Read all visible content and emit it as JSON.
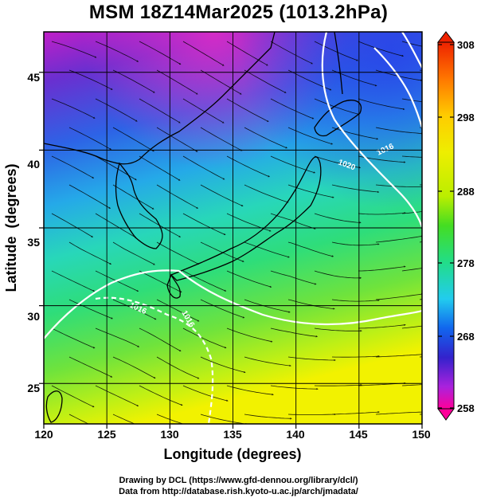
{
  "title": "MSM 18Z14Mar2025 (1013.2hPa)",
  "map": {
    "xaxis": {
      "label": "Longitude (degrees)",
      "range": [
        120,
        150
      ],
      "ticks": [
        "120",
        "125",
        "130",
        "135",
        "140",
        "145",
        "150"
      ]
    },
    "yaxis": {
      "label": "Latitude  (degrees)",
      "range": [
        22.4,
        47.6
      ],
      "ticks": [
        "25",
        "30",
        "35",
        "40",
        "45"
      ]
    },
    "contour_labels": [
      "1016",
      "1016",
      "1020",
      "1016"
    ],
    "field": "temperature",
    "overlays": [
      "streamlines",
      "isobars",
      "coastlines",
      "grid"
    ]
  },
  "colorbar": {
    "ticks": [
      "308",
      "298",
      "288",
      "278",
      "268",
      "258"
    ],
    "range": [
      258,
      308
    ],
    "colors": [
      "#ff0099",
      "#aa22dd",
      "#3322cc",
      "#1166ee",
      "#22ccee",
      "#22dd88",
      "#44dd22",
      "#bbee00",
      "#eeee00",
      "#ffcc00",
      "#ff7700",
      "#ee2200"
    ]
  },
  "credits": {
    "line1": "Drawing by DCL (https://www.gfd-dennou.org/library/dcl/)",
    "line2": "Data from http://database.rish.kyoto-u.ac.jp/arch/jmadata/"
  }
}
